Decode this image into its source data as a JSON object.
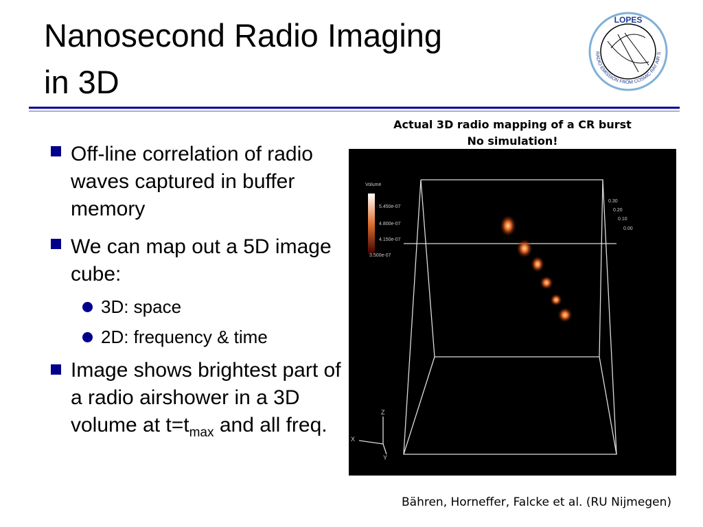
{
  "header": {
    "title_lines": [
      "Nanosecond Radio Imaging",
      "in 3D"
    ],
    "logo": {
      "name": "LOPES",
      "ring_text": "RADIO EMISSION FROM COSMIC RAY AIR SHOWERS"
    }
  },
  "bullets": [
    {
      "text": "Off-line correlation of radio waves captured in buffer memory"
    },
    {
      "text": "We can map out a 5D image cube:",
      "sub": [
        "3D: space",
        "2D: frequency & time"
      ]
    },
    {
      "text_before": "Image shows brightest part of a radio airshower in a 3D volume at t=t",
      "subscript": "max",
      "text_after": " and all freq."
    }
  ],
  "figure": {
    "caption_lines": [
      "Actual 3D radio mapping of a CR burst",
      "No simulation!"
    ],
    "legend": {
      "title": "Volume",
      "labels": [
        "5.450e-07",
        "4.800e-07",
        "4.150e-07",
        "3.500e-07"
      ]
    },
    "axes": [
      "X",
      "Y",
      "Z"
    ],
    "scale_labels": [
      "0.30",
      "0.20",
      "0.10",
      "0.00"
    ]
  },
  "credit": "Bähren, Horneffer, Falcke et al. (RU Nijmegen)"
}
